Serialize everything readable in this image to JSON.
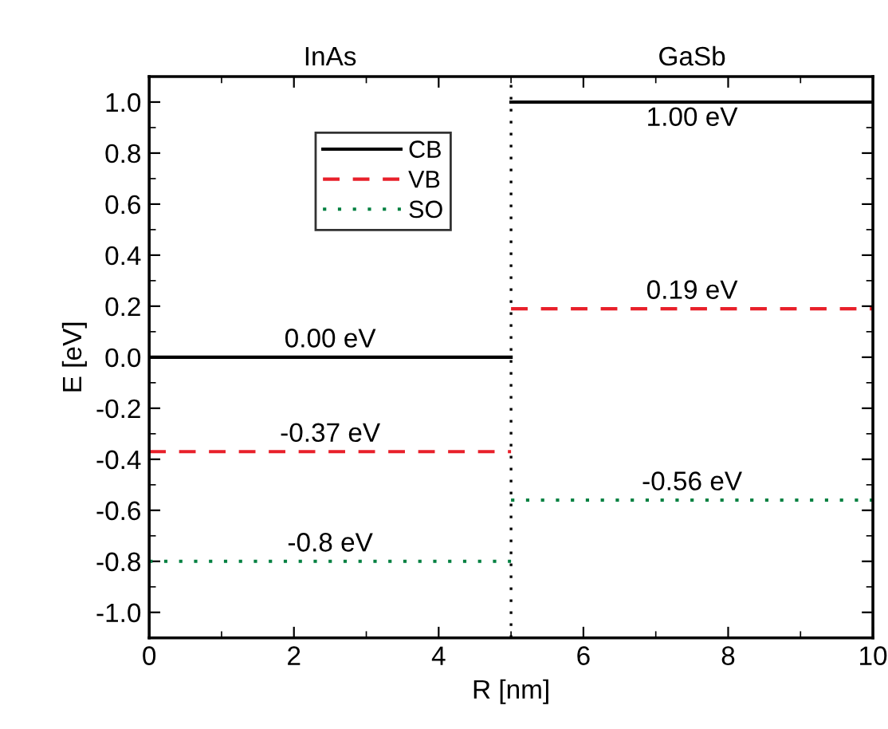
{
  "chart_data": {
    "type": "line",
    "xlabel": "R [nm]",
    "ylabel": "E [eV]",
    "xlim": [
      0,
      10
    ],
    "xticks": [
      0,
      2,
      4,
      6,
      8,
      10
    ],
    "ylim": [
      -1.1,
      1.1
    ],
    "yticks": [
      {
        "value": -1,
        "label": "-1.0"
      },
      -0.8,
      -0.6,
      -0.4,
      -0.2,
      {
        "value": 0,
        "label": "0.0"
      },
      0.2,
      0.4,
      0.6,
      0.8,
      {
        "value": 1,
        "label": "1.0"
      }
    ],
    "series": [
      {
        "name": "CB",
        "color": "#000000",
        "line_style": "solid",
        "x": [
          0,
          5,
          null,
          5,
          10
        ],
        "values": [
          0.0,
          0.0,
          null,
          1.0,
          1.0
        ]
      },
      {
        "name": "VB",
        "color": "#e8202a",
        "line_style": "dashed",
        "x": [
          0,
          5,
          null,
          5,
          10
        ],
        "values": [
          -0.37,
          -0.37,
          null,
          0.19,
          0.19
        ]
      },
      {
        "name": "SO",
        "color": "#008040",
        "line_style": "dotted",
        "x": [
          0,
          5,
          null,
          5,
          10
        ],
        "values": [
          -0.8,
          -0.8,
          null,
          -0.56,
          -0.56
        ]
      }
    ],
    "ref_lines": [
      {
        "axis": "x",
        "value": 5,
        "label": null,
        "color": "#000000",
        "line_style": "dotted"
      }
    ],
    "annotations": [
      "InAs",
      "GaSb",
      {
        "text": "0.00 eV",
        "y": 0.0
      },
      {
        "text": "1.00 eV",
        "y": 1.0
      },
      {
        "text": "-0.37 eV",
        "y": -0.37
      },
      {
        "text": "0.19 eV",
        "y": 0.19
      },
      {
        "text": "-0.8 eV",
        "y": -0.8
      },
      {
        "text": "-0.56 eV",
        "y": -0.56
      }
    ],
    "grid": false,
    "legend": "top left"
  }
}
